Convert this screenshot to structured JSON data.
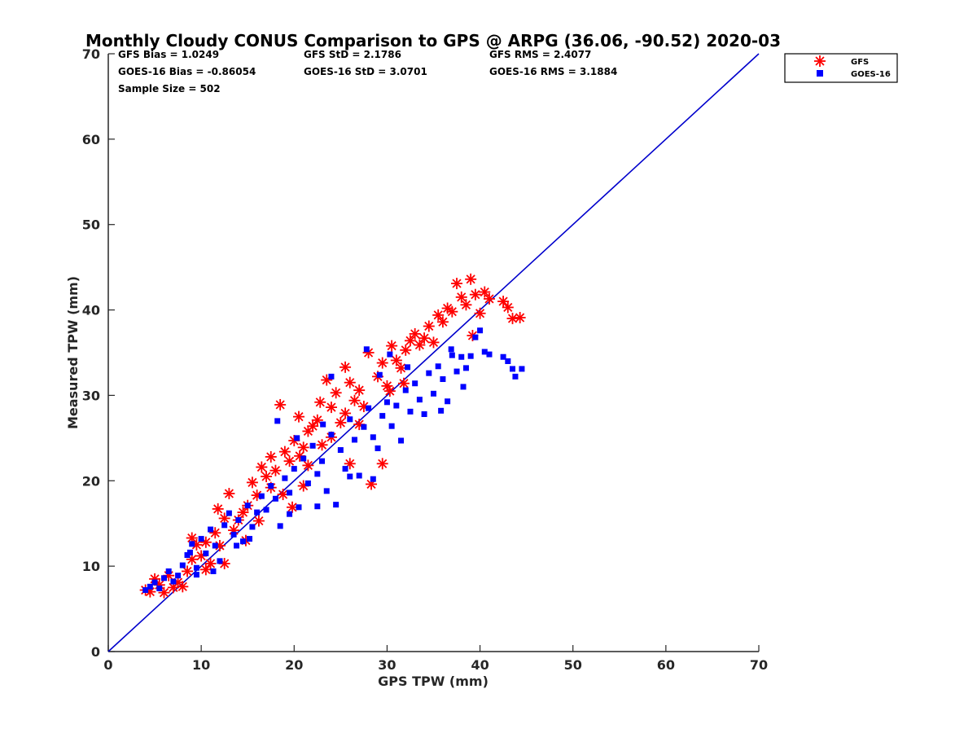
{
  "chart_data": {
    "type": "scatter",
    "title": "Monthly Cloudy CONUS Comparison to GPS @ ARPG (36.06, -90.52) 2020-03",
    "xlabel": "GPS TPW (mm)",
    "ylabel": "Measured TPW (mm)",
    "xlim": [
      0,
      70
    ],
    "ylim": [
      0,
      70
    ],
    "xticks": [
      "0",
      "10",
      "20",
      "30",
      "40",
      "50",
      "60",
      "70"
    ],
    "yticks": [
      "0",
      "10",
      "20",
      "30",
      "40",
      "50",
      "60",
      "70"
    ],
    "grid": false,
    "legend_position": "top-right outside",
    "stats": {
      "gfs_bias": "GFS Bias = 1.0249",
      "goes_bias": "GOES-16 Bias = -0.86054",
      "sample_size": "Sample Size = 502",
      "gfs_std": "GFS StD = 2.1786",
      "goes_std": "GOES-16 StD = 3.0701",
      "gfs_rms": "GFS RMS = 2.4077",
      "goes_rms": "GOES-16 RMS = 3.1884"
    },
    "reference_line": {
      "x": [
        0,
        70
      ],
      "y": [
        0,
        70
      ],
      "color": "#0000cc"
    },
    "series": [
      {
        "name": "GFS",
        "marker": "asterisk",
        "color": "#ff0000",
        "points": [
          [
            4.0,
            7.2
          ],
          [
            4.5,
            7.0
          ],
          [
            5.0,
            8.5
          ],
          [
            5.5,
            7.8
          ],
          [
            6.0,
            6.9
          ],
          [
            6.5,
            8.9
          ],
          [
            7.0,
            7.5
          ],
          [
            7.5,
            8.1
          ],
          [
            8.0,
            7.6
          ],
          [
            8.5,
            9.4
          ],
          [
            9.0,
            10.8
          ],
          [
            9.0,
            13.3
          ],
          [
            9.5,
            12.5
          ],
          [
            10.0,
            11.2
          ],
          [
            10.5,
            12.8
          ],
          [
            11.0,
            10.3
          ],
          [
            11.5,
            13.9
          ],
          [
            12.0,
            12.4
          ],
          [
            12.5,
            15.6
          ],
          [
            11.8,
            16.7
          ],
          [
            13.0,
            18.5
          ],
          [
            13.5,
            14.2
          ],
          [
            14.0,
            15.4
          ],
          [
            14.5,
            16.3
          ],
          [
            15.0,
            17.1
          ],
          [
            15.5,
            19.8
          ],
          [
            16.0,
            18.3
          ],
          [
            16.5,
            21.6
          ],
          [
            17.0,
            20.5
          ],
          [
            17.5,
            22.8
          ],
          [
            18.0,
            21.2
          ],
          [
            18.5,
            28.9
          ],
          [
            19.0,
            23.4
          ],
          [
            19.5,
            22.3
          ],
          [
            20.0,
            24.7
          ],
          [
            20.5,
            27.5
          ],
          [
            21.0,
            23.9
          ],
          [
            21.5,
            25.8
          ],
          [
            22.0,
            26.4
          ],
          [
            22.5,
            27.1
          ],
          [
            23.0,
            24.2
          ],
          [
            23.5,
            31.8
          ],
          [
            24.0,
            28.6
          ],
          [
            24.5,
            30.3
          ],
          [
            25.0,
            26.8
          ],
          [
            25.5,
            33.3
          ],
          [
            26.0,
            31.5
          ],
          [
            26.5,
            29.4
          ],
          [
            27.0,
            30.6
          ],
          [
            27.5,
            28.7
          ],
          [
            28.0,
            35.0
          ],
          [
            28.3,
            19.6
          ],
          [
            29.0,
            32.2
          ],
          [
            29.5,
            33.8
          ],
          [
            30.0,
            31.1
          ],
          [
            30.5,
            35.8
          ],
          [
            31.0,
            34.1
          ],
          [
            31.5,
            33.2
          ],
          [
            32.0,
            35.3
          ],
          [
            32.5,
            36.4
          ],
          [
            33.0,
            37.2
          ],
          [
            33.5,
            35.9
          ],
          [
            34.0,
            36.7
          ],
          [
            34.5,
            38.1
          ],
          [
            35.0,
            36.2
          ],
          [
            35.5,
            39.4
          ],
          [
            36.0,
            38.6
          ],
          [
            36.5,
            40.2
          ],
          [
            37.0,
            39.8
          ],
          [
            37.5,
            43.1
          ],
          [
            38.0,
            41.5
          ],
          [
            38.5,
            40.6
          ],
          [
            39.0,
            43.6
          ],
          [
            39.5,
            41.8
          ],
          [
            40.0,
            39.6
          ],
          [
            40.5,
            42.1
          ],
          [
            41.0,
            41.3
          ],
          [
            42.5,
            41.0
          ],
          [
            43.0,
            40.3
          ],
          [
            43.5,
            39.0
          ],
          [
            44.3,
            39.1
          ],
          [
            39.2,
            37.0
          ],
          [
            26.0,
            22.0
          ],
          [
            29.5,
            22.0
          ],
          [
            21.0,
            19.4
          ],
          [
            19.8,
            16.9
          ],
          [
            16.2,
            15.3
          ],
          [
            14.8,
            13.0
          ],
          [
            12.5,
            10.3
          ],
          [
            10.5,
            9.6
          ],
          [
            24.0,
            25.1
          ],
          [
            25.5,
            27.9
          ],
          [
            27.0,
            26.6
          ],
          [
            22.8,
            29.2
          ],
          [
            21.5,
            21.8
          ],
          [
            18.8,
            18.4
          ],
          [
            20.6,
            22.9
          ],
          [
            17.5,
            19.2
          ],
          [
            30.3,
            30.5
          ],
          [
            31.8,
            31.4
          ]
        ]
      },
      {
        "name": "GOES-16",
        "marker": "square",
        "color": "#0000ff",
        "points": [
          [
            4.0,
            7.2
          ],
          [
            4.5,
            7.6
          ],
          [
            5.0,
            8.1
          ],
          [
            5.5,
            7.4
          ],
          [
            6.0,
            8.6
          ],
          [
            6.5,
            9.4
          ],
          [
            7.0,
            8.2
          ],
          [
            7.5,
            8.9
          ],
          [
            8.0,
            10.1
          ],
          [
            8.5,
            11.3
          ],
          [
            9.0,
            12.6
          ],
          [
            9.5,
            9.8
          ],
          [
            10.0,
            13.2
          ],
          [
            10.5,
            11.5
          ],
          [
            11.0,
            14.3
          ],
          [
            11.5,
            12.4
          ],
          [
            12.0,
            10.6
          ],
          [
            12.5,
            14.8
          ],
          [
            13.0,
            16.2
          ],
          [
            13.5,
            13.7
          ],
          [
            14.0,
            15.4
          ],
          [
            14.5,
            12.9
          ],
          [
            15.0,
            17.1
          ],
          [
            15.5,
            14.6
          ],
          [
            16.0,
            16.3
          ],
          [
            16.5,
            18.2
          ],
          [
            17.0,
            16.6
          ],
          [
            17.5,
            19.4
          ],
          [
            18.0,
            17.9
          ],
          [
            18.5,
            14.7
          ],
          [
            19.0,
            20.3
          ],
          [
            19.5,
            18.6
          ],
          [
            20.0,
            21.4
          ],
          [
            20.5,
            16.9
          ],
          [
            21.0,
            22.6
          ],
          [
            21.5,
            19.7
          ],
          [
            22.0,
            24.1
          ],
          [
            22.5,
            20.8
          ],
          [
            23.0,
            22.3
          ],
          [
            23.5,
            18.8
          ],
          [
            24.0,
            25.4
          ],
          [
            24.5,
            17.2
          ],
          [
            25.0,
            23.6
          ],
          [
            25.5,
            21.4
          ],
          [
            26.0,
            27.2
          ],
          [
            26.5,
            24.8
          ],
          [
            27.0,
            20.6
          ],
          [
            27.5,
            26.3
          ],
          [
            28.0,
            28.5
          ],
          [
            28.5,
            25.1
          ],
          [
            29.0,
            23.8
          ],
          [
            29.5,
            27.6
          ],
          [
            30.0,
            29.2
          ],
          [
            30.5,
            26.4
          ],
          [
            31.0,
            28.8
          ],
          [
            31.5,
            24.7
          ],
          [
            32.0,
            30.6
          ],
          [
            32.5,
            28.1
          ],
          [
            33.0,
            31.4
          ],
          [
            33.5,
            29.5
          ],
          [
            34.0,
            27.8
          ],
          [
            34.5,
            32.6
          ],
          [
            35.0,
            30.2
          ],
          [
            35.5,
            33.4
          ],
          [
            36.0,
            31.9
          ],
          [
            36.5,
            29.3
          ],
          [
            37.0,
            34.7
          ],
          [
            37.5,
            32.8
          ],
          [
            38.0,
            34.5
          ],
          [
            38.5,
            33.2
          ],
          [
            39.0,
            34.6
          ],
          [
            39.5,
            36.8
          ],
          [
            40.0,
            37.6
          ],
          [
            40.5,
            35.1
          ],
          [
            41.0,
            34.8
          ],
          [
            42.5,
            34.5
          ],
          [
            43.0,
            34.0
          ],
          [
            43.5,
            33.1
          ],
          [
            43.8,
            32.2
          ],
          [
            44.5,
            33.1
          ],
          [
            27.8,
            35.4
          ],
          [
            24.0,
            32.2
          ],
          [
            18.2,
            27.0
          ],
          [
            30.3,
            34.8
          ],
          [
            38.2,
            31.0
          ],
          [
            35.8,
            28.2
          ],
          [
            28.5,
            20.2
          ],
          [
            26.0,
            20.5
          ],
          [
            22.5,
            17.0
          ],
          [
            19.5,
            16.1
          ],
          [
            15.2,
            13.2
          ],
          [
            13.8,
            12.4
          ],
          [
            11.3,
            9.4
          ],
          [
            9.5,
            9.0
          ],
          [
            8.8,
            11.6
          ],
          [
            20.3,
            25.0
          ],
          [
            23.1,
            26.6
          ],
          [
            32.2,
            33.3
          ],
          [
            36.9,
            35.4
          ],
          [
            29.2,
            32.4
          ]
        ]
      }
    ]
  }
}
